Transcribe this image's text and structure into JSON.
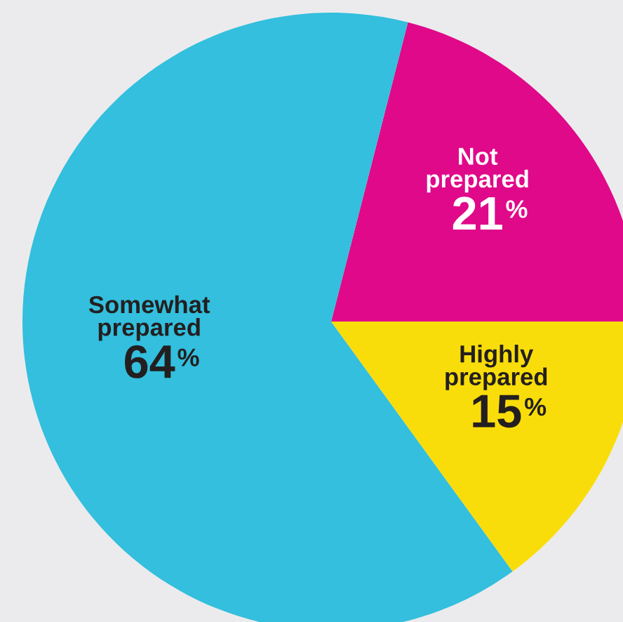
{
  "chart_data": {
    "type": "pie",
    "categories": [
      "Not prepared",
      "Somewhat prepared",
      "Highly prepared"
    ],
    "values": [
      21,
      64,
      15
    ],
    "colors": [
      "#e0098a",
      "#33bfdd",
      "#f9dd0a"
    ],
    "value_labels": [
      "21%",
      "64%",
      "15%"
    ]
  }
}
